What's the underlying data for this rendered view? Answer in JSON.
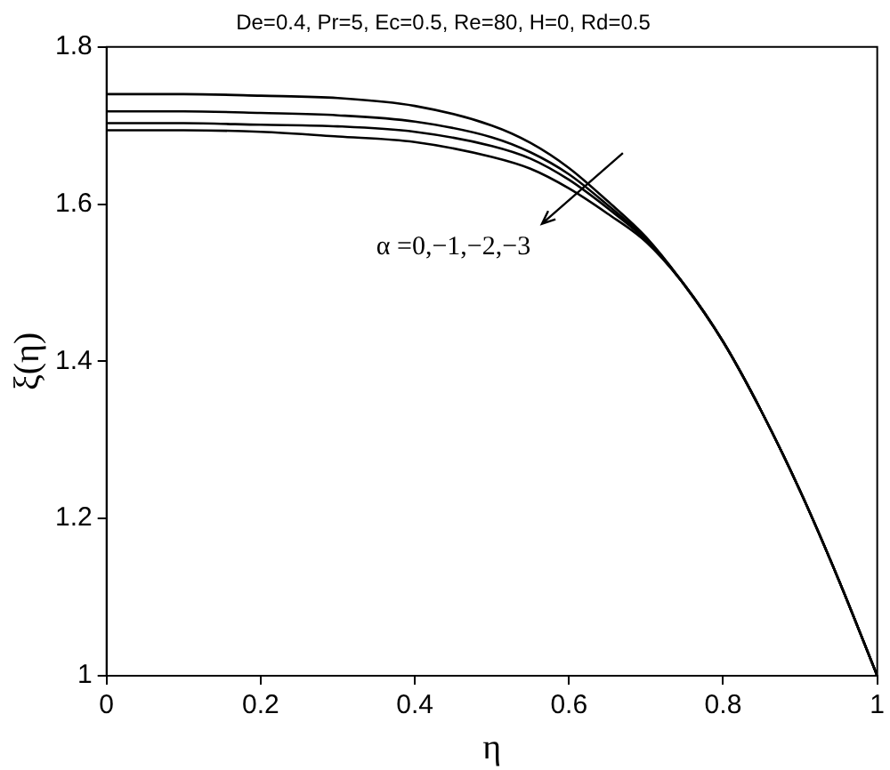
{
  "chart_data": {
    "type": "line",
    "title": "De=0.4, Pr=5, Ec=0.5, Re=80, H=0, Rd=0.5",
    "xlabel": "η",
    "ylabel": "ξ(η)",
    "annotations": [
      "α =0,−1,−2,−3"
    ],
    "x": [
      0,
      0.1,
      0.2,
      0.3,
      0.4,
      0.5,
      0.55,
      0.6,
      0.65,
      0.7,
      0.75,
      0.8,
      0.85,
      0.9,
      0.95,
      1
    ],
    "series": [
      {
        "color": "#000000",
        "values": [
          1.74,
          1.74,
          1.738,
          1.735,
          1.725,
          1.7,
          1.678,
          1.646,
          1.604,
          1.558,
          1.497,
          1.425,
          1.336,
          1.235,
          1.122,
          1.0
        ]
      },
      {
        "color": "#000000",
        "values": [
          1.718,
          1.718,
          1.716,
          1.713,
          1.705,
          1.685,
          1.666,
          1.638,
          1.599,
          1.556,
          1.497,
          1.425,
          1.336,
          1.235,
          1.122,
          1.0
        ]
      },
      {
        "color": "#000000",
        "values": [
          1.703,
          1.703,
          1.701,
          1.699,
          1.692,
          1.674,
          1.658,
          1.631,
          1.595,
          1.554,
          1.497,
          1.425,
          1.336,
          1.235,
          1.122,
          1.0
        ]
      },
      {
        "color": "#000000",
        "values": [
          1.694,
          1.694,
          1.692,
          1.686,
          1.679,
          1.66,
          1.645,
          1.62,
          1.588,
          1.552,
          1.497,
          1.425,
          1.336,
          1.235,
          1.122,
          1.0
        ]
      }
    ],
    "xlim": [
      0,
      1
    ],
    "xticks": [
      0,
      0.2,
      0.4,
      0.6,
      0.8,
      1
    ],
    "ylim": [
      1,
      1.8
    ],
    "yticks": [
      1,
      1.2,
      1.4,
      1.6,
      1.8
    ],
    "grid": false,
    "legend": false,
    "marker": "none",
    "line_style": "solid"
  }
}
